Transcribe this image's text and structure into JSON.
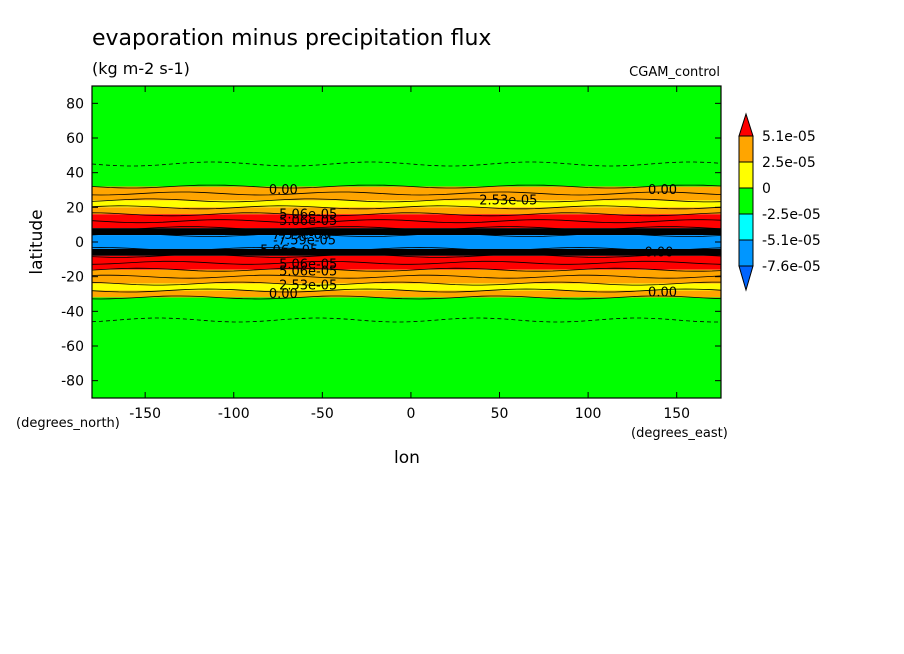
{
  "chart_data": {
    "type": "heatmap",
    "title": "evaporation minus precipitation flux",
    "units": "(kg m-2 s-1)",
    "dataset": "CGAM_control",
    "xlabel": "lon",
    "ylabel": "latitude",
    "x_unit_label": "(degrees_east)",
    "y_unit_label": "(degrees_north)",
    "xlim": [
      -180,
      175
    ],
    "ylim": [
      -90,
      90
    ],
    "x_ticks": [
      -150,
      -100,
      -50,
      0,
      50,
      100,
      150
    ],
    "y_ticks": [
      80,
      60,
      40,
      20,
      0,
      -20,
      -40,
      -60,
      -80
    ],
    "x_tick_labels": [
      "-150",
      "-100",
      "-50",
      "0",
      "50",
      "100",
      "150"
    ],
    "y_tick_labels": [
      "80",
      "60",
      "40",
      "20",
      "0",
      "-20",
      "-40",
      "-60",
      "-80"
    ],
    "colorbar": {
      "labels": [
        "5.1e-05",
        "2.5e-05",
        "0",
        "-2.5e-05",
        "-5.1e-05",
        "-7.6e-05"
      ],
      "colors": [
        "#ff0000",
        "#ffa500",
        "#ffff00",
        "#00ff00",
        "#00ffff",
        "#0096ff",
        "#0064ff"
      ]
    },
    "bands": [
      {
        "lat_from": 90,
        "lat_to": 32,
        "color": "#00ff00"
      },
      {
        "lat_from": 32,
        "lat_to": 24,
        "color": "#ffa500"
      },
      {
        "lat_from": 24,
        "lat_to": 20,
        "color": "#ffff00"
      },
      {
        "lat_from": 20,
        "lat_to": 16,
        "color": "#ffa500"
      },
      {
        "lat_from": 16,
        "lat_to": 8,
        "color": "#ff0000"
      },
      {
        "lat_from": 8,
        "lat_to": 4,
        "color": "#000000"
      },
      {
        "lat_from": 4,
        "lat_to": -4,
        "color": "#0096ff"
      },
      {
        "lat_from": -4,
        "lat_to": -8,
        "color": "#000000"
      },
      {
        "lat_from": -8,
        "lat_to": -16,
        "color": "#ff0000"
      },
      {
        "lat_from": -16,
        "lat_to": -24,
        "color": "#ffa500"
      },
      {
        "lat_from": -24,
        "lat_to": -28,
        "color": "#ffff00"
      },
      {
        "lat_from": -28,
        "lat_to": -32,
        "color": "#ffa500"
      },
      {
        "lat_from": -32,
        "lat_to": -90,
        "color": "#00ff00"
      }
    ],
    "contour_lats": [
      32,
      28,
      24,
      20,
      16,
      12,
      8,
      6,
      4,
      -4,
      -6,
      -8,
      -12,
      -16,
      -20,
      -24,
      -28,
      -32
    ],
    "dashed_contour_lats": [
      45,
      -45
    ],
    "contour_labels": [
      {
        "text": "0.00",
        "lon": -72,
        "lat": 30
      },
      {
        "text": "0.00",
        "lon": 142,
        "lat": 30
      },
      {
        "text": "2.53e-05",
        "lon": 55,
        "lat": 24
      },
      {
        "text": "5.06e-05",
        "lon": -58,
        "lat": 16
      },
      {
        "text": "5.06e-05",
        "lon": -58,
        "lat": 12
      },
      {
        "text": "7.59e-05",
        "lon": -62,
        "lat": 4
      },
      {
        "text": "-7.59e-05",
        "lon": -60,
        "lat": 1
      },
      {
        "text": "-5.06e-05",
        "lon": -70,
        "lat": -5
      },
      {
        "text": "5.06e-05",
        "lon": -58,
        "lat": -13
      },
      {
        "text": "5.06e-05",
        "lon": -58,
        "lat": -17
      },
      {
        "text": "2.53e-05",
        "lon": -58,
        "lat": -25
      },
      {
        "text": "0.00",
        "lon": -72,
        "lat": -30
      },
      {
        "text": "0.00",
        "lon": 142,
        "lat": -29
      },
      {
        "text": "0.00",
        "lon": 140,
        "lat": -6
      }
    ]
  }
}
